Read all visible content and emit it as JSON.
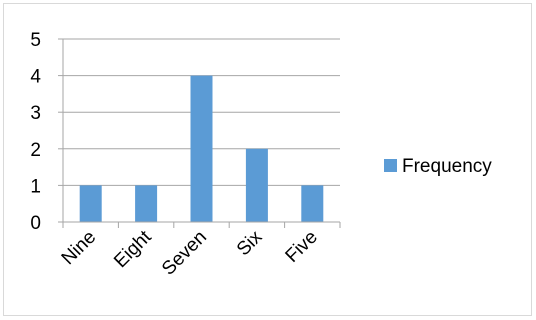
{
  "chart_data": {
    "type": "bar",
    "categories": [
      "Nine",
      "Eight",
      "Seven",
      "Six",
      "Five"
    ],
    "series": [
      {
        "name": "Frequency",
        "values": [
          1,
          1,
          4,
          2,
          1
        ],
        "color": "#5b9bd5"
      }
    ],
    "title": "",
    "xlabel": "",
    "ylabel": "",
    "ylim": [
      0,
      5
    ],
    "yticks": [
      0,
      1,
      2,
      3,
      4,
      5
    ],
    "grid": true,
    "legend_position": "right",
    "colors": {
      "gridline": "#a6a6a6",
      "axis": "#a6a6a6",
      "frame": "#d9d9d9"
    }
  }
}
